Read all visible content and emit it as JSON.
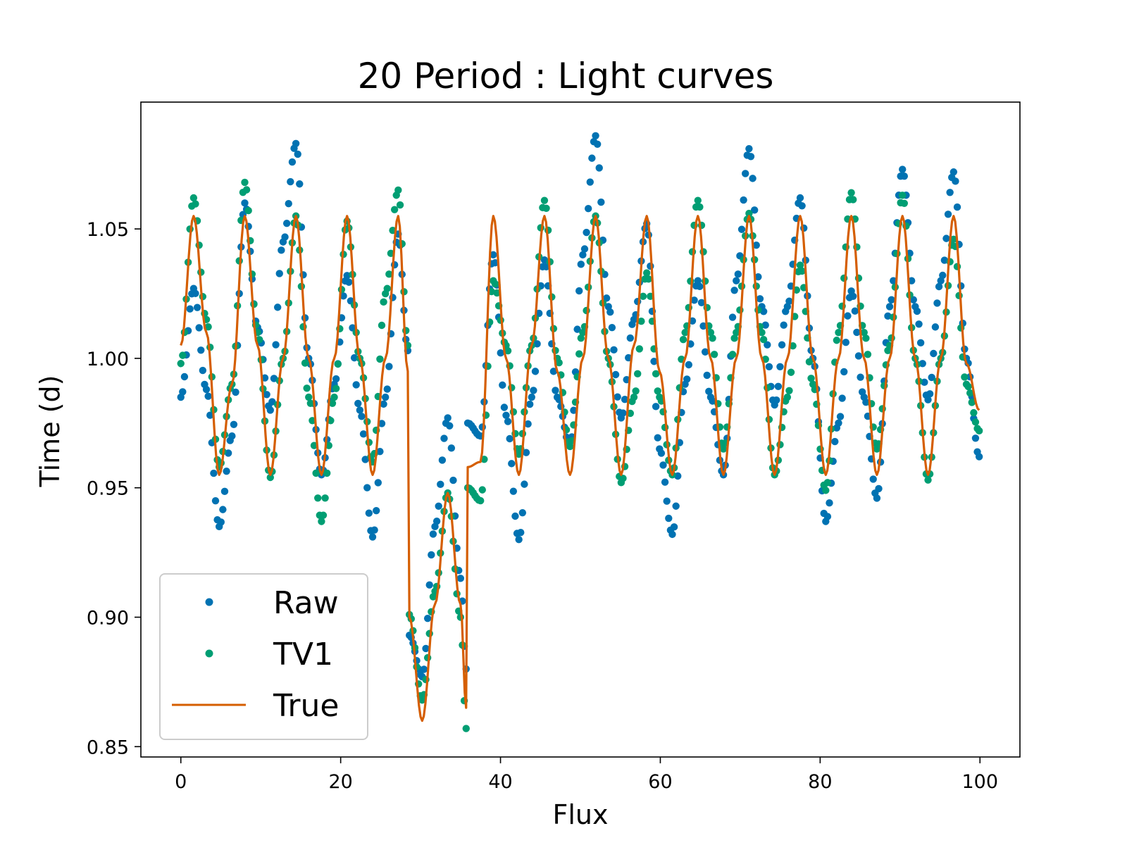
{
  "chart_data": {
    "type": "line",
    "title": "20 Period : Light curves",
    "xlabel": "Flux",
    "ylabel": "Time (d)",
    "xlim": [
      -5,
      105
    ],
    "ylim": [
      0.846,
      1.099
    ],
    "xticks": [
      0,
      20,
      40,
      60,
      80,
      100
    ],
    "yticks": [
      0.85,
      0.9,
      0.95,
      1.0,
      1.05
    ],
    "xtick_labels": [
      "0",
      "20",
      "40",
      "60",
      "80",
      "100"
    ],
    "ytick_labels": [
      "0.85",
      "0.90",
      "0.95",
      "1.00",
      "1.05"
    ],
    "grid": false,
    "legend_position": "lower-left",
    "colors": {
      "raw": "#0072b2",
      "tv1": "#009e73",
      "true": "#d55e00"
    },
    "series": [
      {
        "name": "Raw",
        "style": "markers",
        "x": [
          0.0,
          1.6,
          3.2,
          4.8,
          6.4,
          8.0,
          9.6,
          11.2,
          12.8,
          14.4,
          16.0,
          17.6,
          19.2,
          20.8,
          22.4,
          24.0,
          25.6,
          27.2,
          28.4,
          28.6,
          30.2,
          31.8,
          33.4,
          35.0,
          35.7,
          35.9,
          37.5,
          39.1,
          40.7,
          42.3,
          43.9,
          45.5,
          47.1,
          48.7,
          50.3,
          51.9,
          53.5,
          55.1,
          56.7,
          58.3,
          59.9,
          61.5,
          63.1,
          64.7,
          66.3,
          67.9,
          69.5,
          71.1,
          72.7,
          74.3,
          75.9,
          77.5,
          79.1,
          80.7,
          82.3,
          83.9,
          85.5,
          87.1,
          88.7,
          90.3,
          91.9,
          93.5,
          95.1,
          96.7,
          98.3,
          99.9
        ],
        "y": [
          0.985,
          1.027,
          0.988,
          0.935,
          0.97,
          1.06,
          1.012,
          0.98,
          1.045,
          1.083,
          1.0,
          0.955,
          0.99,
          1.032,
          0.98,
          0.931,
          0.985,
          1.048,
          1.003,
          0.893,
          0.877,
          0.935,
          0.977,
          0.915,
          0.88,
          0.975,
          0.97,
          1.04,
          0.978,
          0.93,
          0.985,
          1.038,
          0.985,
          0.966,
          1.04,
          1.086,
          1.02,
          0.977,
          1.015,
          1.052,
          0.965,
          0.932,
          0.99,
          1.03,
          0.985,
          0.955,
          1.03,
          1.081,
          1.02,
          0.982,
          1.02,
          1.062,
          1.0,
          0.937,
          0.975,
          1.026,
          0.985,
          0.946,
          1.02,
          1.073,
          1.02,
          0.984,
          1.03,
          1.072,
          1.0,
          0.962
        ]
      },
      {
        "name": "TV1",
        "style": "markers",
        "x": [
          0.0,
          1.6,
          3.2,
          4.8,
          6.4,
          8.0,
          9.6,
          11.2,
          12.8,
          14.4,
          16.0,
          17.6,
          19.2,
          20.8,
          22.4,
          24.0,
          25.6,
          27.2,
          28.4,
          28.6,
          30.2,
          31.8,
          33.4,
          35.0,
          35.7,
          35.9,
          37.5,
          39.1,
          40.7,
          42.3,
          43.9,
          45.5,
          47.1,
          48.7,
          50.3,
          51.9,
          53.5,
          55.1,
          56.7,
          58.3,
          59.9,
          61.5,
          63.1,
          64.7,
          66.3,
          67.9,
          69.5,
          71.1,
          72.7,
          74.3,
          75.9,
          77.5,
          79.1,
          80.7,
          82.3,
          83.9,
          85.5,
          87.1,
          88.7,
          90.3,
          91.9,
          93.5,
          95.1,
          96.7,
          98.3,
          99.9
        ],
        "y": [
          0.998,
          1.062,
          1.015,
          0.958,
          0.99,
          1.068,
          1.01,
          0.954,
          1.0,
          1.055,
          0.985,
          0.937,
          0.985,
          1.053,
          1.0,
          0.96,
          1.025,
          1.065,
          1.005,
          0.901,
          0.868,
          0.91,
          0.948,
          0.9,
          0.857,
          0.95,
          0.945,
          1.03,
          1.005,
          0.963,
          1.005,
          1.061,
          1.0,
          0.966,
          1.01,
          1.055,
          1.0,
          0.952,
          0.985,
          1.033,
          0.985,
          0.955,
          1.01,
          1.061,
          1.01,
          0.965,
          1.01,
          1.056,
          1.01,
          0.955,
          0.985,
          1.036,
          0.99,
          0.949,
          1.01,
          1.064,
          1.01,
          0.965,
          1.005,
          1.063,
          1.0,
          0.953,
          1.0,
          1.046,
          0.99,
          0.972
        ]
      },
      {
        "name": "True",
        "style": "line",
        "x": [
          0.0,
          1.6,
          3.2,
          4.8,
          6.4,
          8.0,
          9.6,
          11.2,
          12.8,
          14.4,
          16.0,
          17.6,
          19.2,
          20.8,
          22.4,
          24.0,
          25.6,
          27.2,
          28.4,
          28.6,
          30.2,
          31.8,
          33.4,
          35.0,
          35.7,
          35.9,
          37.5,
          39.1,
          40.7,
          42.3,
          43.9,
          45.5,
          47.1,
          48.7,
          50.3,
          51.9,
          53.5,
          55.1,
          56.7,
          58.3,
          59.9,
          61.5,
          63.1,
          64.7,
          66.3,
          67.9,
          69.5,
          71.1,
          72.7,
          74.3,
          75.9,
          77.5,
          79.1,
          80.7,
          82.3,
          83.9,
          85.5,
          87.1,
          88.7,
          90.3,
          91.9,
          93.5,
          95.1,
          96.7,
          98.3,
          99.9
        ],
        "y": [
          1.005,
          1.055,
          1.01,
          0.955,
          0.99,
          1.055,
          1.005,
          0.955,
          1.0,
          1.055,
          1.0,
          0.955,
          1.0,
          1.055,
          1.0,
          0.955,
          1.0,
          1.055,
          0.995,
          0.9,
          0.86,
          0.905,
          0.948,
          0.905,
          0.865,
          0.958,
          0.96,
          1.055,
          1.0,
          0.955,
          1.005,
          1.055,
          0.995,
          0.955,
          1.0,
          1.055,
          1.0,
          0.955,
          1.005,
          1.055,
          0.995,
          0.955,
          1.0,
          1.055,
          1.0,
          0.955,
          1.0,
          1.055,
          1.0,
          0.955,
          1.0,
          1.055,
          1.0,
          0.955,
          1.0,
          1.055,
          1.0,
          0.955,
          1.0,
          1.055,
          1.0,
          0.955,
          1.0,
          1.055,
          0.998,
          0.98
        ]
      }
    ]
  }
}
